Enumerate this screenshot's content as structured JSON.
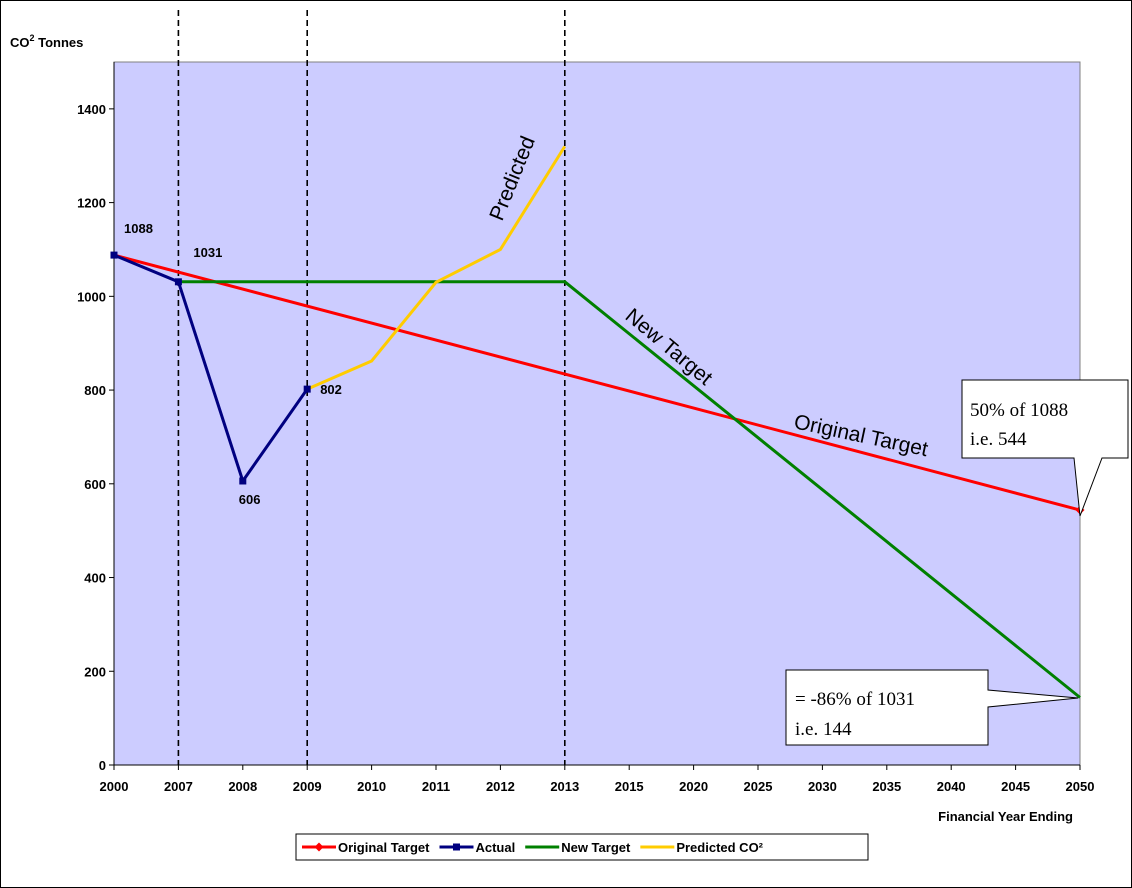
{
  "chart_data": {
    "type": "line",
    "ylabel": "CO",
    "ylabel_sup": "2",
    "ylabel_rest": " Tonnes",
    "xlabel": "Financial Year Ending",
    "ylim": [
      0,
      1500
    ],
    "yticks": [
      0,
      200,
      400,
      600,
      800,
      1000,
      1200,
      1400
    ],
    "categories": [
      "2000",
      "2007",
      "2008",
      "2009",
      "2010",
      "2011",
      "2012",
      "2013",
      "2015",
      "2020",
      "2025",
      "2030",
      "2035",
      "2040",
      "2045",
      "2050"
    ],
    "grid": false,
    "plot_background": "#ccccff",
    "legend_position": "bottom",
    "vertical_markers": [
      "2007",
      "2009",
      "2013"
    ],
    "series": [
      {
        "name": "Original Target",
        "color": "#ff0000",
        "marker": "diamond",
        "points": [
          [
            "2000",
            1088
          ],
          [
            "2050",
            544
          ]
        ],
        "marker_points": [
          [
            "2050",
            544
          ]
        ]
      },
      {
        "name": "Actual",
        "color": "#000080",
        "marker": "square",
        "points": [
          [
            "2000",
            1088
          ],
          [
            "2007",
            1031
          ],
          [
            "2008",
            606
          ],
          [
            "2009",
            802
          ]
        ],
        "marker_points": [
          [
            "2000",
            1088
          ],
          [
            "2007",
            1031
          ],
          [
            "2008",
            606
          ],
          [
            "2009",
            802
          ]
        ]
      },
      {
        "name": "New Target",
        "color": "#008000",
        "marker": "none",
        "points": [
          [
            "2007",
            1031
          ],
          [
            "2013",
            1031
          ],
          [
            "2050",
            144
          ]
        ],
        "marker_points": []
      },
      {
        "name": "Predicted CO²",
        "color": "#ffcc00",
        "marker": "none",
        "points": [
          [
            "2009",
            802
          ],
          [
            "2010",
            862
          ],
          [
            "2011",
            1030
          ],
          [
            "2012",
            1100
          ],
          [
            "2013",
            1320
          ]
        ],
        "marker_points": []
      }
    ],
    "data_labels": [
      {
        "text": "1088",
        "x": "2000",
        "y": 1088
      },
      {
        "text": "1031",
        "x": "2007",
        "y": 1031
      },
      {
        "text": "606",
        "x": "2008",
        "y": 606
      },
      {
        "text": "802",
        "x": "2009",
        "y": 802
      }
    ],
    "annotations": {
      "predicted": "Predicted",
      "new_target": "New Target",
      "original_target": "Original Target",
      "callout_original": [
        "50% of 1088",
        "i.e. 544"
      ],
      "callout_new": [
        "= -86% of 1031",
        "i.e. 144"
      ]
    }
  }
}
